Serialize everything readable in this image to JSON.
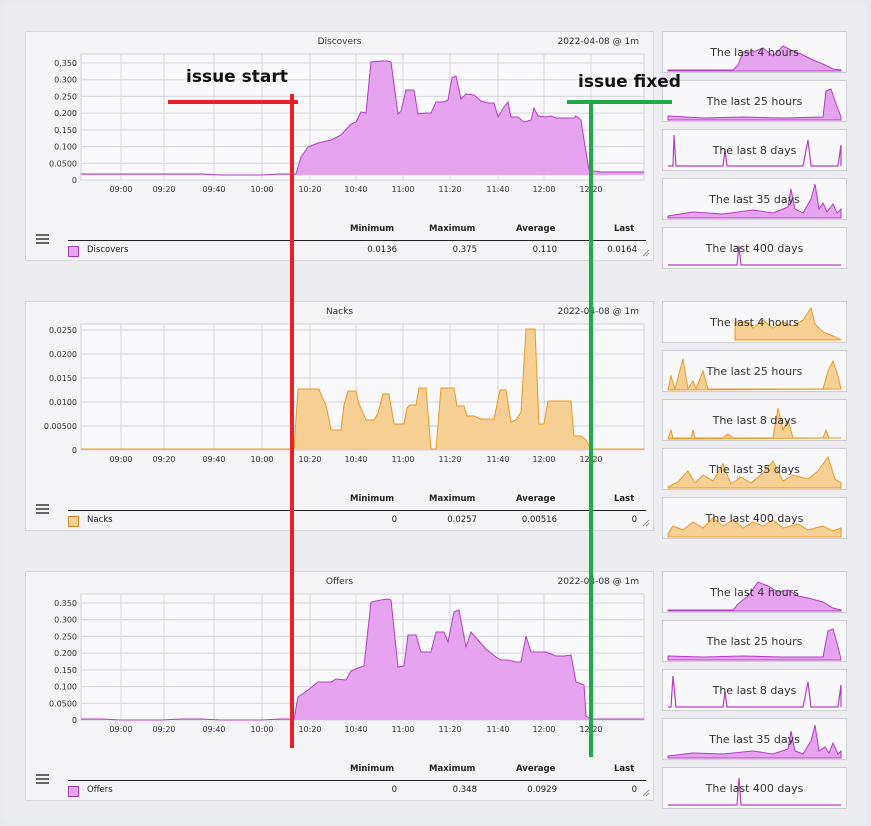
{
  "colors": {
    "purple_fill": "#e6a4f0",
    "purple_line": "#b43ec4",
    "orange_fill": "#f6cf94",
    "orange_line": "#e79a24",
    "red": "#e8202a",
    "green": "#1faa45"
  },
  "time_ticks": [
    "09:00",
    "09:20",
    "09:40",
    "10:00",
    "10:20",
    "10:40",
    "11:00",
    "11:20",
    "11:40",
    "12:00",
    "12:20"
  ],
  "stats_headers": {
    "min": "Minimum",
    "max": "Maximum",
    "avg": "Average",
    "last": "Last"
  },
  "annotations": {
    "issue_start": "issue start",
    "issue_fixed": "issue fixed"
  },
  "panels": [
    {
      "title": "Discovers",
      "date": "2022-04-08 @ 1m",
      "legend": "Discovers",
      "min": "0.0136",
      "max": "0.375",
      "avg": "0.110",
      "last": "0.0164",
      "yticks": [
        "0.350",
        "0.300",
        "0.250",
        "0.200",
        "0.150",
        "0.100",
        "0.0500",
        "0"
      ],
      "thumbs": [
        "The last 4 hours",
        "The last 25 hours",
        "The last 8 days",
        "The last 35 days",
        "The last 400 days"
      ]
    },
    {
      "title": "Nacks",
      "date": "2022-04-08 @ 1m",
      "legend": "Nacks",
      "min": "0",
      "max": "0.0257",
      "avg": "0.00516",
      "last": "0",
      "yticks": [
        "0.0250",
        "0.0200",
        "0.0150",
        "0.0100",
        "0.00500",
        "0"
      ],
      "thumbs": [
        "The last 4 hours",
        "The last 25 hours",
        "The last 8 days",
        "The last 35 days",
        "The last 400 days"
      ]
    },
    {
      "title": "Offers",
      "date": "2022-04-08 @ 1m",
      "legend": "Offers",
      "min": "0",
      "max": "0.348",
      "avg": "0.0929",
      "last": "0",
      "yticks": [
        "0.350",
        "0.300",
        "0.250",
        "0.200",
        "0.150",
        "0.100",
        "0.0500",
        "0"
      ],
      "thumbs": [
        "The last 4 hours",
        "The last 25 hours",
        "The last 8 days",
        "The last 35 days",
        "The last 400 days"
      ]
    }
  ]
}
